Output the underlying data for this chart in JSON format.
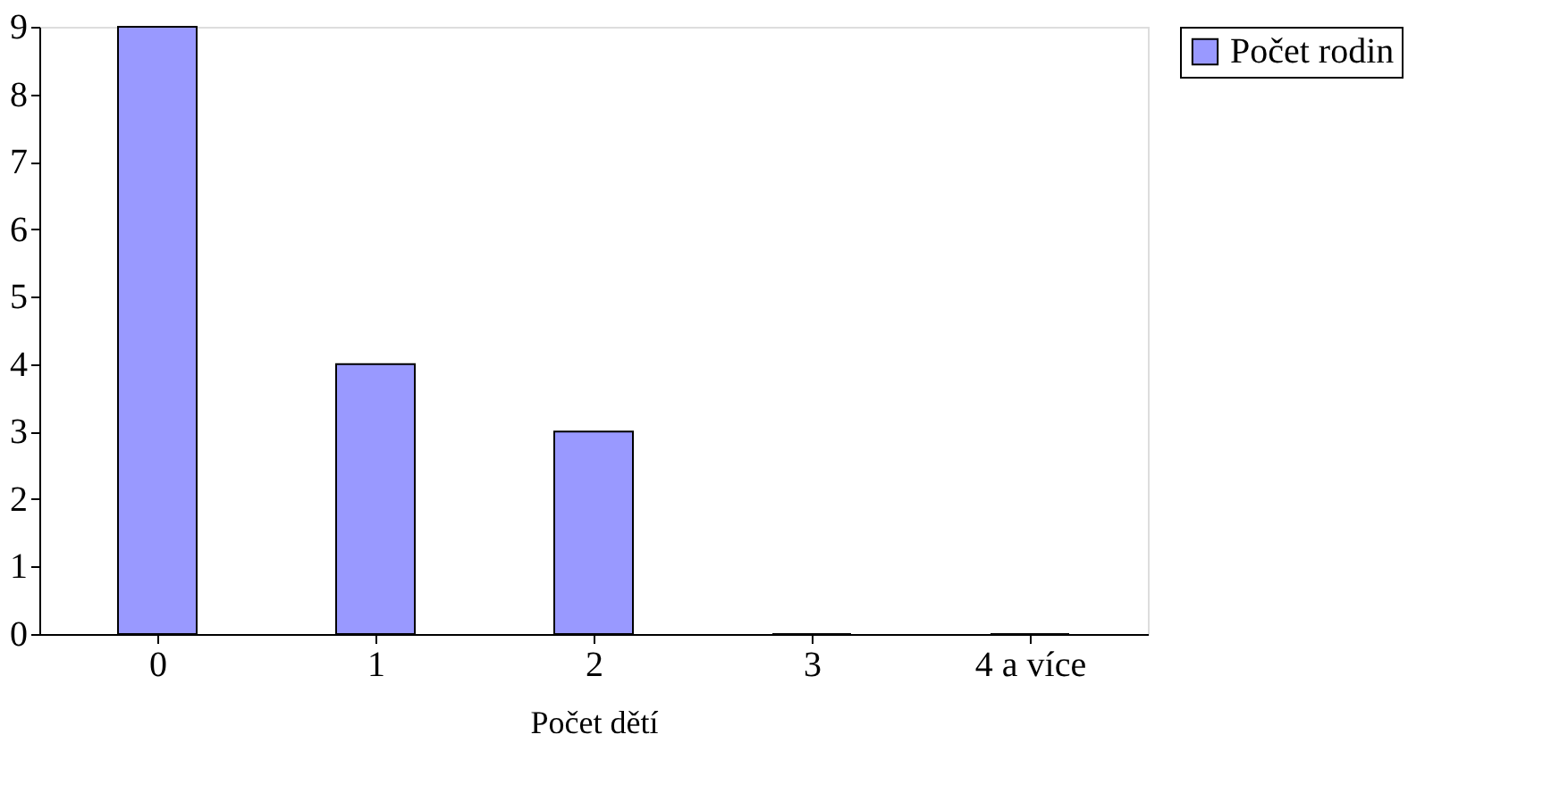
{
  "chart_data": {
    "type": "bar",
    "xlabel": "Počet dětí",
    "categories": [
      "0",
      "1",
      "2",
      "3",
      "4 a více"
    ],
    "series": [
      {
        "name": "Počet rodin",
        "color": "#9999ff",
        "values": [
          9,
          4,
          3,
          0,
          0
        ]
      }
    ],
    "ylim": [
      0,
      9
    ],
    "yticks": [
      0,
      1,
      2,
      3,
      4,
      5,
      6,
      7,
      8,
      9
    ],
    "grid": false,
    "legend": "right"
  }
}
